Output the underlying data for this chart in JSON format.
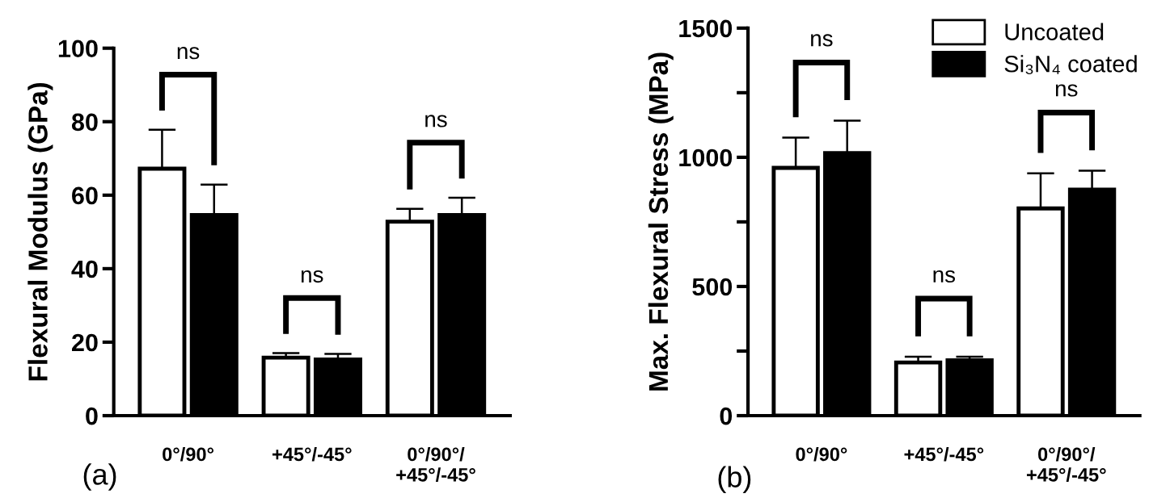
{
  "chart_data": [
    {
      "type": "bar",
      "ylabel": "Flexural Modulus (GPa)",
      "categories": [
        "0°/90°",
        "+45°/-45°",
        "0°/90°/\n+45°/-45°"
      ],
      "series": [
        {
          "color": "#ffffff",
          "values": [
            67.2,
            15.8,
            52.8
          ],
          "errors": [
            [
              67.2,
              77.8
            ],
            [
              15.8,
              17.0
            ],
            [
              52.8,
              56.3
            ]
          ]
        },
        {
          "color": "#000000",
          "values": [
            54.6,
            15.3,
            54.6
          ],
          "errors": [
            [
              54.6,
              62.9
            ],
            [
              15.3,
              16.8
            ],
            [
              54.6,
              59.3
            ]
          ]
        }
      ],
      "ylim": [
        0,
        100
      ],
      "yticks": [
        0,
        20,
        40,
        60,
        80,
        100
      ],
      "grid": false,
      "legend": false,
      "annotations": [
        "ns",
        "ns",
        "ns",
        "(a)"
      ]
    },
    {
      "type": "bar",
      "ylabel": "Max. Flexural Stress (MPa)",
      "categories": [
        "0°/90°",
        "+45°/-45°",
        "0°/90°/\n+45°/-45°"
      ],
      "series": [
        {
          "name": "Uncoated",
          "color": "#ffffff",
          "values": [
            959,
            206,
            802
          ],
          "errors": [
            [
              959,
              1076
            ],
            [
              206,
              228
            ],
            [
              802,
              938
            ]
          ]
        },
        {
          "name": "Si₃N₄ coated",
          "color": "#000000",
          "values": [
            1016,
            214,
            875
          ],
          "errors": [
            [
              1016,
              1142
            ],
            [
              214,
              228
            ],
            [
              875,
              948
            ]
          ]
        }
      ],
      "ylim": [
        0,
        1500
      ],
      "yticks": [
        0,
        {
          "value": 250,
          "label": null
        },
        500,
        {
          "value": 750,
          "label": null
        },
        1000,
        {
          "value": 1250,
          "label": null
        },
        1500
      ],
      "grid": false,
      "legend": "top right",
      "annotations": [
        "ns",
        "ns",
        "ns",
        "(b)"
      ]
    }
  ]
}
